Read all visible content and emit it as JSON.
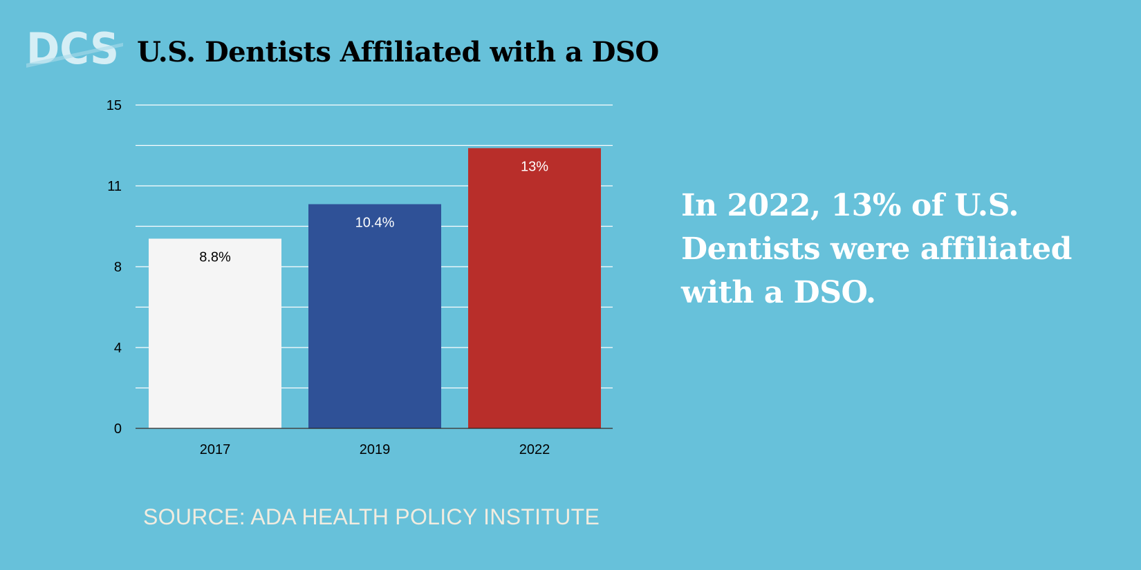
{
  "logo_text": "DCS",
  "title": "U.S. Dentists Affiliated with a DSO",
  "callout": "In 2022, 13% of U.S. Dentists were affiliated with a DSO.",
  "source": "SOURCE: ADA HEALTH POLICY INSTITUTE",
  "colors": {
    "background": "#67c1da",
    "gridline": "#ffffff"
  },
  "chart_data": {
    "type": "bar",
    "categories": [
      "2017",
      "2019",
      "2022"
    ],
    "values": [
      8.8,
      10.4,
      13
    ],
    "data_labels": [
      "8.8%",
      "10.4%",
      "13%"
    ],
    "bar_colors": [
      "#f5f5f5",
      "#2f5197",
      "#b82e2a"
    ],
    "label_colors": [
      "#000000",
      "#ffffff",
      "#ffffff"
    ],
    "ylim": [
      0,
      15
    ],
    "yticks": [
      0,
      3.75,
      7.5,
      11.25,
      15
    ],
    "ytick_labels": [
      "0",
      "4",
      "8",
      "11",
      "15"
    ],
    "minor_gridlines": [
      1.875,
      5.625,
      9.375,
      13.125
    ],
    "grid": true,
    "title": "",
    "xlabel": "",
    "ylabel": ""
  }
}
